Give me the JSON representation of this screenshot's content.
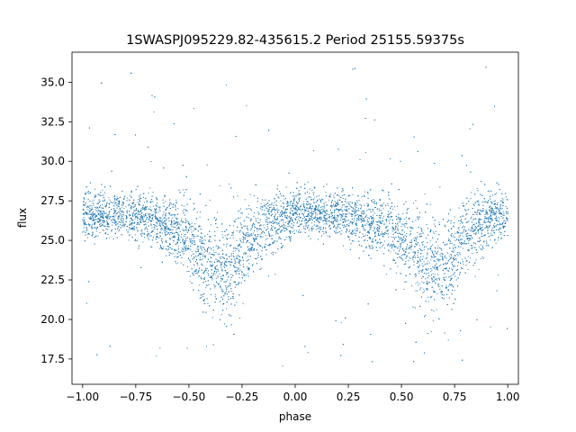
{
  "chart_data": {
    "type": "scatter",
    "title": "1SWASPJ095229.82-435615.2 Period 25155.59375s",
    "xlabel": "phase",
    "ylabel": "flux",
    "xlim": [
      -1.05,
      1.05
    ],
    "ylim": [
      15.9,
      36.9
    ],
    "xticks": [
      -1.0,
      -0.75,
      -0.5,
      -0.25,
      0.0,
      0.25,
      0.5,
      0.75,
      1.0
    ],
    "xtick_labels": [
      "−1.00",
      "−0.75",
      "−0.50",
      "−0.25",
      "0.00",
      "0.25",
      "0.50",
      "0.75",
      "1.00"
    ],
    "yticks": [
      17.5,
      20.0,
      22.5,
      25.0,
      27.5,
      30.0,
      32.5,
      35.0
    ],
    "ytick_labels": [
      "17.5",
      "20.0",
      "22.5",
      "25.0",
      "27.5",
      "30.0",
      "32.5",
      "35.0"
    ],
    "grid": false,
    "legend": "none",
    "marker_color": "#1f77b4",
    "series": [
      {
        "x": [
          -1.0,
          -0.9,
          -0.8,
          -0.7,
          -0.6,
          -0.5,
          -0.45,
          -0.4,
          -0.35,
          -0.3,
          -0.25,
          -0.2,
          -0.1,
          0.0,
          0.1,
          0.2,
          0.3,
          0.4,
          0.5,
          0.55,
          0.6,
          0.65,
          0.7,
          0.75,
          0.8,
          0.9,
          1.0
        ],
        "y": [
          26.6,
          26.6,
          26.6,
          26.5,
          26.0,
          25.0,
          24.2,
          23.5,
          23.2,
          23.4,
          24.2,
          25.2,
          26.3,
          26.6,
          26.6,
          26.6,
          26.5,
          26.0,
          25.0,
          24.2,
          23.5,
          23.2,
          23.4,
          24.2,
          25.2,
          26.3,
          26.6
        ],
        "scatter_band": [
          1.3,
          1.3,
          1.3,
          1.4,
          1.8,
          2.2,
          2.5,
          2.7,
          2.8,
          2.7,
          2.5,
          2.2,
          1.6,
          1.3,
          1.3,
          1.3,
          1.4,
          1.8,
          2.2,
          2.5,
          2.7,
          2.8,
          2.7,
          2.5,
          2.2,
          1.6,
          1.3
        ],
        "y_range": [
          17.0,
          36.0
        ]
      }
    ]
  }
}
